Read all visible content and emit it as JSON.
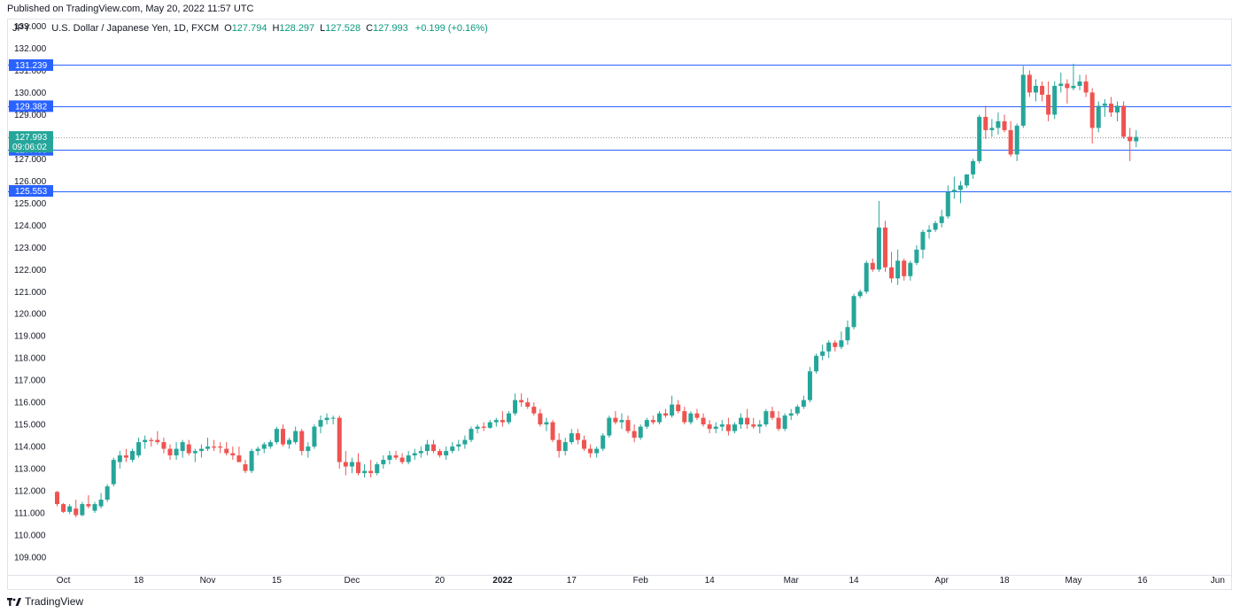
{
  "header": {
    "published": "Published on TradingView.com, May 20, 2022 11:57 UTC"
  },
  "legend": {
    "symbol": "JPY",
    "name": "U.S. Dollar / Japanese Yen, 1D, FXCM",
    "open_label": "O",
    "open": "127.794",
    "high_label": "H",
    "high": "128.297",
    "low_label": "L",
    "low": "127.528",
    "close_label": "C",
    "close": "127.993",
    "change": "+0.199 (+0.16%)"
  },
  "footer": {
    "brand": "TradingView"
  },
  "colors": {
    "up": "#26a69a",
    "down": "#ef5350",
    "hline": "#2962ff",
    "price_tag": "#26a69a"
  },
  "chart_data": {
    "type": "candlestick",
    "title": "U.S. Dollar / Japanese Yen, 1D, FXCM",
    "ylim": [
      108.2,
      133.3
    ],
    "y_ticks": [
      "109.000",
      "110.000",
      "111.000",
      "112.000",
      "113.000",
      "114.000",
      "115.000",
      "116.000",
      "117.000",
      "118.000",
      "119.000",
      "120.000",
      "121.000",
      "122.000",
      "123.000",
      "124.000",
      "125.000",
      "126.000",
      "127.000",
      "128.000",
      "129.000",
      "130.000",
      "131.000",
      "132.000",
      "133.000"
    ],
    "x_ticks": [
      {
        "label": "Oct",
        "idx": 1
      },
      {
        "label": "18",
        "idx": 13
      },
      {
        "label": "Nov",
        "idx": 24
      },
      {
        "label": "15",
        "idx": 35
      },
      {
        "label": "Dec",
        "idx": 47
      },
      {
        "label": "20",
        "idx": 61
      },
      {
        "label": "2022",
        "idx": 71,
        "bold": true
      },
      {
        "label": "17",
        "idx": 82
      },
      {
        "label": "Feb",
        "idx": 93
      },
      {
        "label": "14",
        "idx": 104
      },
      {
        "label": "Mar",
        "idx": 117
      },
      {
        "label": "14",
        "idx": 127
      },
      {
        "label": "Apr",
        "idx": 141
      },
      {
        "label": "18",
        "idx": 151
      },
      {
        "label": "May",
        "idx": 162
      },
      {
        "label": "16",
        "idx": 173
      },
      {
        "label": "Jun",
        "idx": 185
      }
    ],
    "horizontal_lines": [
      {
        "value": 131.239,
        "label": "131.239"
      },
      {
        "value": 129.382,
        "label": "129.382"
      },
      {
        "value": 127.409,
        "label": "127.409"
      },
      {
        "value": 125.553,
        "label": "125.553"
      }
    ],
    "last_price": {
      "value": 127.993,
      "label": "127.993",
      "countdown": "09:06:02"
    },
    "candles": [
      [
        111.95,
        112.0,
        111.3,
        111.4
      ],
      [
        111.4,
        111.45,
        111.0,
        111.05
      ],
      [
        111.05,
        111.4,
        110.95,
        111.3
      ],
      [
        111.2,
        111.6,
        110.8,
        110.9
      ],
      [
        110.9,
        111.5,
        110.85,
        111.4
      ],
      [
        111.4,
        111.8,
        111.2,
        111.3
      ],
      [
        111.1,
        111.5,
        111.0,
        111.4
      ],
      [
        111.3,
        111.9,
        111.2,
        111.6
      ],
      [
        111.6,
        112.3,
        111.5,
        112.2
      ],
      [
        112.3,
        113.5,
        112.2,
        113.4
      ],
      [
        113.3,
        113.8,
        113.0,
        113.6
      ],
      [
        113.6,
        113.9,
        113.3,
        113.5
      ],
      [
        113.4,
        113.9,
        113.3,
        113.8
      ],
      [
        113.6,
        114.4,
        113.5,
        114.2
      ],
      [
        114.2,
        114.5,
        113.9,
        114.3
      ],
      [
        114.3,
        114.4,
        114.0,
        114.25
      ],
      [
        114.3,
        114.7,
        114.1,
        114.2
      ],
      [
        114.2,
        114.4,
        113.7,
        113.9
      ],
      [
        113.9,
        114.1,
        113.4,
        113.6
      ],
      [
        113.6,
        114.2,
        113.4,
        113.9
      ],
      [
        113.8,
        114.3,
        113.5,
        114.2
      ],
      [
        114.1,
        114.3,
        113.6,
        113.7
      ],
      [
        113.7,
        113.9,
        113.3,
        113.8
      ],
      [
        113.8,
        114.1,
        113.5,
        113.9
      ],
      [
        113.9,
        114.4,
        113.8,
        114.0
      ],
      [
        114.0,
        114.3,
        113.8,
        113.95
      ],
      [
        114.0,
        114.2,
        113.7,
        113.95
      ],
      [
        113.9,
        114.2,
        113.6,
        113.7
      ],
      [
        113.7,
        114.0,
        113.4,
        113.6
      ],
      [
        113.6,
        114.0,
        113.3,
        113.3
      ],
      [
        113.2,
        113.4,
        112.8,
        112.9
      ],
      [
        112.9,
        113.9,
        112.8,
        113.8
      ],
      [
        113.8,
        114.0,
        113.6,
        113.9
      ],
      [
        113.9,
        114.2,
        113.7,
        114.1
      ],
      [
        114.0,
        114.3,
        113.9,
        114.2
      ],
      [
        114.2,
        114.9,
        114.1,
        114.8
      ],
      [
        114.8,
        115.0,
        114.0,
        114.1
      ],
      [
        114.1,
        114.4,
        113.9,
        114.3
      ],
      [
        114.2,
        114.9,
        114.1,
        114.7
      ],
      [
        114.7,
        114.8,
        113.6,
        113.8
      ],
      [
        113.8,
        114.2,
        113.5,
        114.0
      ],
      [
        114.0,
        115.0,
        113.9,
        114.9
      ],
      [
        114.9,
        115.4,
        114.6,
        115.2
      ],
      [
        115.2,
        115.5,
        115.0,
        115.3
      ],
      [
        115.3,
        115.4,
        115.0,
        115.3
      ],
      [
        115.3,
        115.4,
        113.0,
        113.3
      ],
      [
        113.3,
        113.8,
        112.7,
        113.1
      ],
      [
        113.1,
        113.5,
        112.8,
        113.3
      ],
      [
        113.3,
        113.7,
        112.7,
        112.8
      ],
      [
        112.8,
        113.2,
        112.6,
        112.9
      ],
      [
        112.9,
        113.4,
        112.6,
        112.8
      ],
      [
        112.8,
        113.3,
        112.7,
        113.2
      ],
      [
        113.2,
        113.6,
        113.0,
        113.4
      ],
      [
        113.4,
        113.8,
        113.2,
        113.6
      ],
      [
        113.6,
        113.8,
        113.4,
        113.5
      ],
      [
        113.5,
        113.7,
        113.2,
        113.3
      ],
      [
        113.3,
        113.8,
        113.2,
        113.6
      ],
      [
        113.6,
        113.9,
        113.4,
        113.7
      ],
      [
        113.7,
        114.0,
        113.5,
        113.8
      ],
      [
        113.8,
        114.3,
        113.6,
        114.1
      ],
      [
        114.1,
        114.3,
        113.7,
        113.8
      ],
      [
        113.8,
        113.9,
        113.5,
        113.6
      ],
      [
        113.6,
        114.0,
        113.4,
        113.8
      ],
      [
        113.8,
        114.2,
        113.7,
        114.0
      ],
      [
        114.0,
        114.3,
        113.8,
        114.1
      ],
      [
        114.1,
        114.5,
        113.9,
        114.3
      ],
      [
        114.3,
        114.9,
        114.2,
        114.8
      ],
      [
        114.8,
        115.0,
        114.6,
        114.9
      ],
      [
        114.9,
        115.1,
        114.7,
        114.85
      ],
      [
        114.85,
        115.2,
        114.8,
        115.1
      ],
      [
        115.1,
        115.3,
        114.9,
        115.2
      ],
      [
        115.2,
        115.6,
        114.9,
        115.1
      ],
      [
        115.1,
        115.6,
        115.0,
        115.5
      ],
      [
        115.5,
        116.4,
        115.4,
        116.1
      ],
      [
        116.1,
        116.4,
        115.8,
        116.0
      ],
      [
        116.0,
        116.2,
        115.7,
        115.8
      ],
      [
        115.8,
        116.0,
        115.4,
        115.5
      ],
      [
        115.5,
        115.7,
        114.9,
        115.0
      ],
      [
        115.0,
        115.3,
        114.7,
        115.1
      ],
      [
        115.1,
        115.2,
        114.2,
        114.3
      ],
      [
        114.3,
        114.6,
        113.5,
        113.8
      ],
      [
        113.8,
        114.4,
        113.6,
        114.2
      ],
      [
        114.2,
        114.8,
        114.1,
        114.6
      ],
      [
        114.6,
        114.8,
        114.1,
        114.3
      ],
      [
        114.3,
        114.5,
        113.8,
        113.9
      ],
      [
        113.9,
        114.1,
        113.5,
        113.7
      ],
      [
        113.7,
        114.0,
        113.5,
        113.9
      ],
      [
        113.9,
        114.6,
        113.8,
        114.5
      ],
      [
        114.5,
        115.4,
        114.4,
        115.3
      ],
      [
        115.3,
        115.6,
        115.0,
        115.1
      ],
      [
        115.1,
        115.5,
        114.8,
        115.2
      ],
      [
        115.2,
        115.4,
        114.6,
        114.7
      ],
      [
        114.7,
        115.0,
        114.2,
        114.4
      ],
      [
        114.4,
        115.0,
        114.3,
        114.9
      ],
      [
        114.9,
        115.3,
        114.8,
        115.2
      ],
      [
        115.2,
        115.4,
        115.0,
        115.1
      ],
      [
        115.1,
        115.6,
        115.0,
        115.5
      ],
      [
        115.5,
        115.7,
        115.3,
        115.4
      ],
      [
        115.4,
        116.3,
        115.3,
        115.9
      ],
      [
        115.9,
        116.1,
        115.5,
        115.6
      ],
      [
        115.6,
        115.8,
        115.0,
        115.1
      ],
      [
        115.1,
        115.6,
        115.0,
        115.5
      ],
      [
        115.5,
        115.7,
        115.2,
        115.3
      ],
      [
        115.3,
        115.5,
        114.9,
        115.0
      ],
      [
        115.0,
        115.2,
        114.6,
        114.8
      ],
      [
        114.8,
        115.1,
        114.6,
        114.9
      ],
      [
        114.9,
        115.2,
        114.7,
        115.0
      ],
      [
        115.0,
        115.3,
        114.5,
        114.7
      ],
      [
        114.7,
        115.1,
        114.6,
        115.0
      ],
      [
        115.0,
        115.5,
        114.8,
        115.3
      ],
      [
        115.3,
        115.7,
        114.8,
        115.0
      ],
      [
        115.0,
        115.3,
        114.8,
        114.9
      ],
      [
        114.9,
        115.2,
        114.6,
        115.0
      ],
      [
        115.0,
        115.7,
        114.9,
        115.6
      ],
      [
        115.6,
        115.8,
        115.2,
        115.3
      ],
      [
        115.3,
        115.6,
        114.7,
        114.8
      ],
      [
        114.8,
        115.5,
        114.7,
        115.4
      ],
      [
        115.4,
        115.7,
        115.2,
        115.5
      ],
      [
        115.5,
        115.9,
        115.4,
        115.8
      ],
      [
        115.8,
        116.3,
        115.7,
        116.1
      ],
      [
        116.1,
        117.6,
        116.0,
        117.4
      ],
      [
        117.4,
        118.2,
        117.3,
        118.1
      ],
      [
        118.1,
        118.6,
        117.9,
        118.3
      ],
      [
        118.3,
        118.8,
        118.0,
        118.7
      ],
      [
        118.7,
        118.8,
        118.3,
        118.5
      ],
      [
        118.5,
        119.2,
        118.4,
        118.8
      ],
      [
        118.8,
        119.7,
        118.6,
        119.4
      ],
      [
        119.4,
        120.9,
        119.3,
        120.8
      ],
      [
        120.8,
        121.1,
        120.7,
        121.0
      ],
      [
        121.0,
        122.4,
        120.9,
        122.3
      ],
      [
        122.3,
        122.5,
        121.9,
        122.0
      ],
      [
        122.0,
        125.1,
        121.9,
        123.9
      ],
      [
        123.9,
        124.2,
        121.9,
        122.1
      ],
      [
        122.1,
        122.8,
        121.4,
        121.6
      ],
      [
        121.6,
        122.9,
        121.3,
        122.4
      ],
      [
        122.4,
        122.5,
        121.5,
        121.7
      ],
      [
        121.7,
        122.4,
        121.5,
        122.3
      ],
      [
        122.3,
        123.1,
        122.2,
        122.9
      ],
      [
        122.9,
        123.8,
        122.5,
        123.7
      ],
      [
        123.7,
        124.0,
        123.4,
        123.8
      ],
      [
        123.8,
        124.2,
        123.7,
        124.1
      ],
      [
        124.1,
        124.7,
        123.9,
        124.4
      ],
      [
        124.4,
        125.8,
        124.3,
        125.5
      ],
      [
        125.5,
        126.2,
        125.2,
        125.6
      ],
      [
        125.6,
        126.0,
        125.0,
        125.8
      ],
      [
        125.8,
        126.3,
        125.7,
        126.3
      ],
      [
        126.3,
        127.0,
        126.1,
        126.9
      ],
      [
        126.9,
        129.0,
        126.8,
        128.9
      ],
      [
        128.9,
        129.4,
        127.9,
        128.3
      ],
      [
        128.3,
        128.8,
        128.0,
        128.4
      ],
      [
        128.4,
        129.1,
        128.1,
        128.7
      ],
      [
        128.7,
        129.0,
        128.2,
        128.3
      ],
      [
        128.3,
        128.7,
        127.1,
        127.2
      ],
      [
        127.2,
        128.6,
        126.9,
        128.5
      ],
      [
        128.5,
        131.2,
        128.4,
        130.8
      ],
      [
        130.8,
        131.0,
        129.8,
        130.0
      ],
      [
        130.0,
        130.6,
        129.6,
        130.3
      ],
      [
        130.3,
        130.5,
        129.6,
        129.9
      ],
      [
        129.9,
        130.5,
        128.7,
        129.0
      ],
      [
        129.0,
        130.5,
        128.8,
        130.3
      ],
      [
        130.3,
        130.9,
        130.0,
        130.4
      ],
      [
        130.4,
        130.6,
        129.5,
        130.2
      ],
      [
        130.2,
        131.3,
        130.1,
        130.3
      ],
      [
        130.3,
        130.8,
        130.1,
        130.5
      ],
      [
        130.5,
        130.8,
        129.8,
        130.0
      ],
      [
        130.0,
        130.2,
        127.7,
        128.4
      ],
      [
        128.4,
        129.6,
        128.2,
        129.4
      ],
      [
        129.4,
        129.7,
        128.9,
        129.5
      ],
      [
        129.5,
        129.8,
        128.9,
        129.1
      ],
      [
        129.1,
        129.6,
        128.7,
        129.4
      ],
      [
        129.4,
        129.6,
        127.9,
        128.0
      ],
      [
        128.0,
        128.4,
        126.9,
        127.8
      ],
      [
        127.794,
        128.297,
        127.528,
        127.993
      ]
    ]
  }
}
